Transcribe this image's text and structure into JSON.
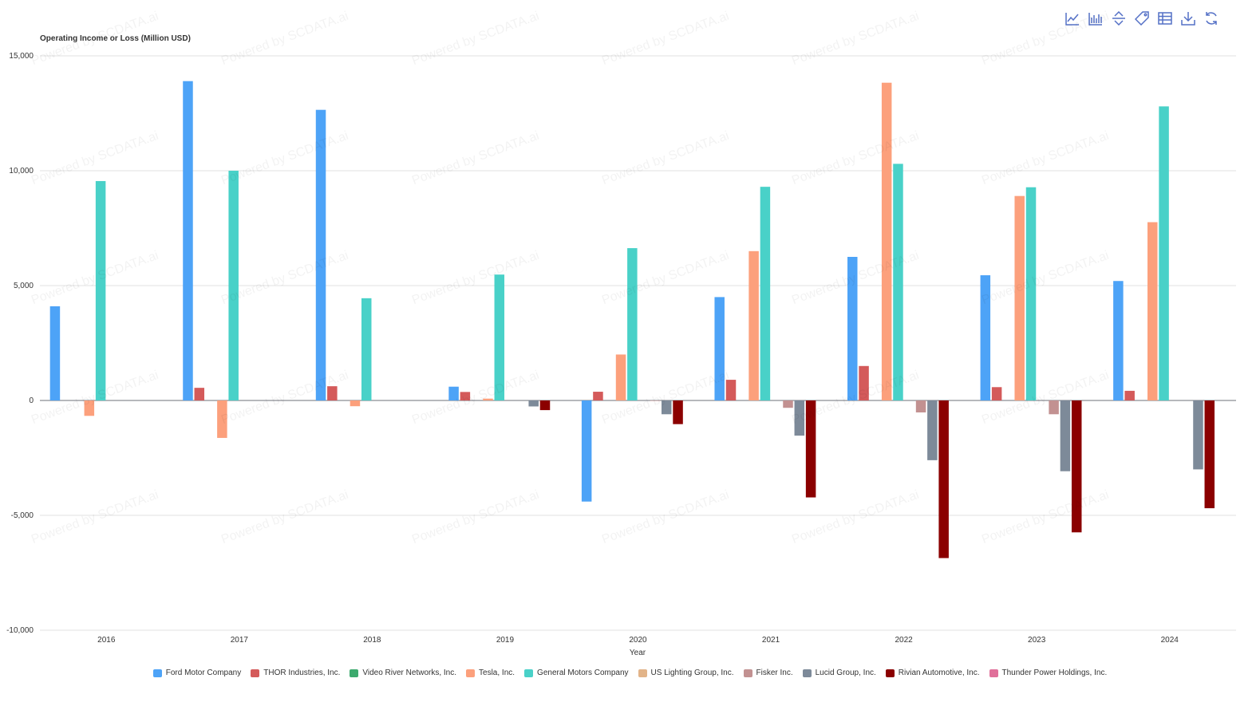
{
  "watermark_text": "Powered by SCDATA.ai",
  "toolbar": {
    "icons": [
      "line-chart-icon",
      "bar-chart-icon",
      "stack-toggle-icon",
      "tag-icon",
      "data-table-icon",
      "download-icon",
      "refresh-icon"
    ],
    "color": "#5470c6"
  },
  "chart_data": {
    "type": "bar",
    "ylabel": "Operating Income or Loss (Million USD)",
    "xlabel": "Year",
    "ylim": [
      -10000,
      15000
    ],
    "yticks": [
      15000,
      10000,
      5000,
      0,
      -5000,
      -10000
    ],
    "ytick_labels": [
      "15,000",
      "10,000",
      "5,000",
      "0",
      "-5,000",
      "-10,000"
    ],
    "categories": [
      "2016",
      "2017",
      "2018",
      "2019",
      "2020",
      "2021",
      "2022",
      "2023",
      "2024"
    ],
    "grid": true,
    "legend_position": "bottom",
    "series": [
      {
        "name": "Ford Motor Company",
        "color": "#4da3f7",
        "values": [
          4100,
          13900,
          12650,
          600,
          -4400,
          4500,
          6250,
          5450,
          5200
        ]
      },
      {
        "name": "THOR Industries, Inc.",
        "color": "#d45a5a",
        "values": [
          null,
          550,
          620,
          370,
          380,
          900,
          1500,
          580,
          420
        ]
      },
      {
        "name": "Video River Networks, Inc.",
        "color": "#3daa6e",
        "values": [
          null,
          null,
          null,
          null,
          null,
          null,
          null,
          null,
          null
        ]
      },
      {
        "name": "Tesla, Inc.",
        "color": "#fca07c",
        "values": [
          -670,
          -1630,
          -250,
          80,
          2000,
          6500,
          13830,
          8900,
          7760
        ]
      },
      {
        "name": "General Motors Company",
        "color": "#49d1c8",
        "values": [
          9550,
          10000,
          4450,
          5480,
          6630,
          9300,
          10300,
          9280,
          12800
        ]
      },
      {
        "name": "US Lighting Group, Inc.",
        "color": "#e2b489",
        "values": [
          null,
          null,
          null,
          null,
          null,
          null,
          null,
          null,
          null
        ]
      },
      {
        "name": "Fisker Inc.",
        "color": "#c29191",
        "values": [
          null,
          null,
          null,
          null,
          -20,
          -320,
          -520,
          -600,
          null
        ]
      },
      {
        "name": "Lucid Group, Inc.",
        "color": "#7d8a99",
        "values": [
          null,
          null,
          null,
          -260,
          -600,
          -1530,
          -2600,
          -3080,
          -3000
        ]
      },
      {
        "name": "Rivian Automotive, Inc.",
        "color": "#8b0000",
        "values": [
          null,
          null,
          null,
          -420,
          -1030,
          -4220,
          -6860,
          -5740,
          -4690
        ]
      },
      {
        "name": "Thunder Power Holdings, Inc.",
        "color": "#e0709a",
        "values": [
          null,
          null,
          null,
          null,
          null,
          null,
          null,
          null,
          null
        ]
      }
    ]
  }
}
